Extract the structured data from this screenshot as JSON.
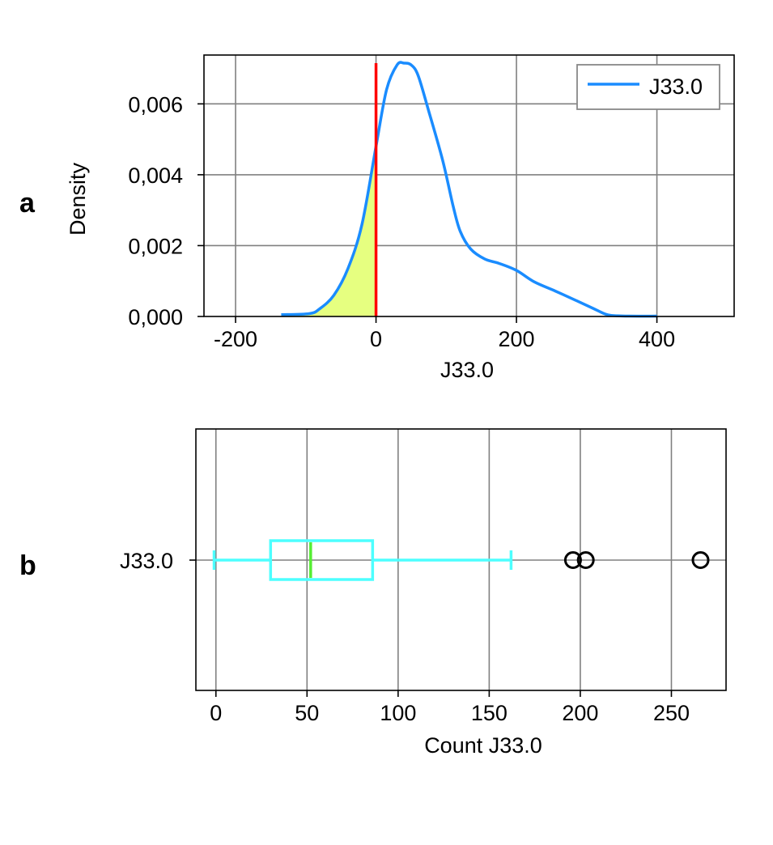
{
  "chart_data": [
    {
      "panel": "a",
      "type": "line",
      "title": "",
      "xlabel": "J33.0",
      "ylabel": "Density",
      "xlim": [
        -245,
        510
      ],
      "ylim": [
        0,
        0.00715
      ],
      "xticks": [
        -200,
        0,
        200,
        400
      ],
      "xtick_labels": [
        "-200",
        "0",
        "200",
        "400"
      ],
      "yticks": [
        0,
        0.002,
        0.004,
        0.006
      ],
      "ytick_labels": [
        "0,000",
        "0,002",
        "0,004",
        "0,006"
      ],
      "grid": true,
      "legend": {
        "placement": "top-right",
        "entries": [
          "J33.0"
        ]
      },
      "series": [
        {
          "name": "J33.0",
          "color": "#1a8cff",
          "x": [
            -135,
            -95,
            -80,
            -60,
            -40,
            -20,
            0,
            15,
            30,
            40,
            50,
            60,
            75,
            95,
            110,
            120,
            135,
            155,
            175,
            200,
            225,
            255,
            285,
            310,
            325,
            335,
            360,
            400
          ],
          "y": [
            5e-05,
            8e-05,
            0.00022,
            0.0006,
            0.00135,
            0.0026,
            0.0048,
            0.0064,
            0.0071,
            0.00715,
            0.0071,
            0.0068,
            0.0058,
            0.0044,
            0.0031,
            0.0024,
            0.0019,
            0.00162,
            0.0015,
            0.0013,
            0.00098,
            0.00072,
            0.00045,
            0.00022,
            8e-05,
            3e-05,
            1e-05,
            1e-05
          ]
        }
      ],
      "shaded_region": {
        "color": "#e6ff80",
        "x_from": -135,
        "x_to": 0
      },
      "vertical_line": {
        "x": 0,
        "color": "#ff0000"
      }
    },
    {
      "panel": "b",
      "type": "box",
      "title": "",
      "xlabel": "Count J33.0",
      "ylabel": "",
      "xlim": [
        -11,
        280
      ],
      "xticks": [
        0,
        50,
        100,
        150,
        200,
        250
      ],
      "xtick_labels": [
        "0",
        "50",
        "100",
        "150",
        "200",
        "250"
      ],
      "category_label": "J33.0",
      "grid": true,
      "box": {
        "whisker_low": -1,
        "q1": 30,
        "median": 52,
        "q3": 86,
        "whisker_high": 162,
        "outliers": [
          196,
          203,
          266
        ],
        "color": "#4dffff",
        "median_color": "#55ee33"
      }
    }
  ],
  "panels": {
    "a_letter": "a",
    "b_letter": "b"
  }
}
